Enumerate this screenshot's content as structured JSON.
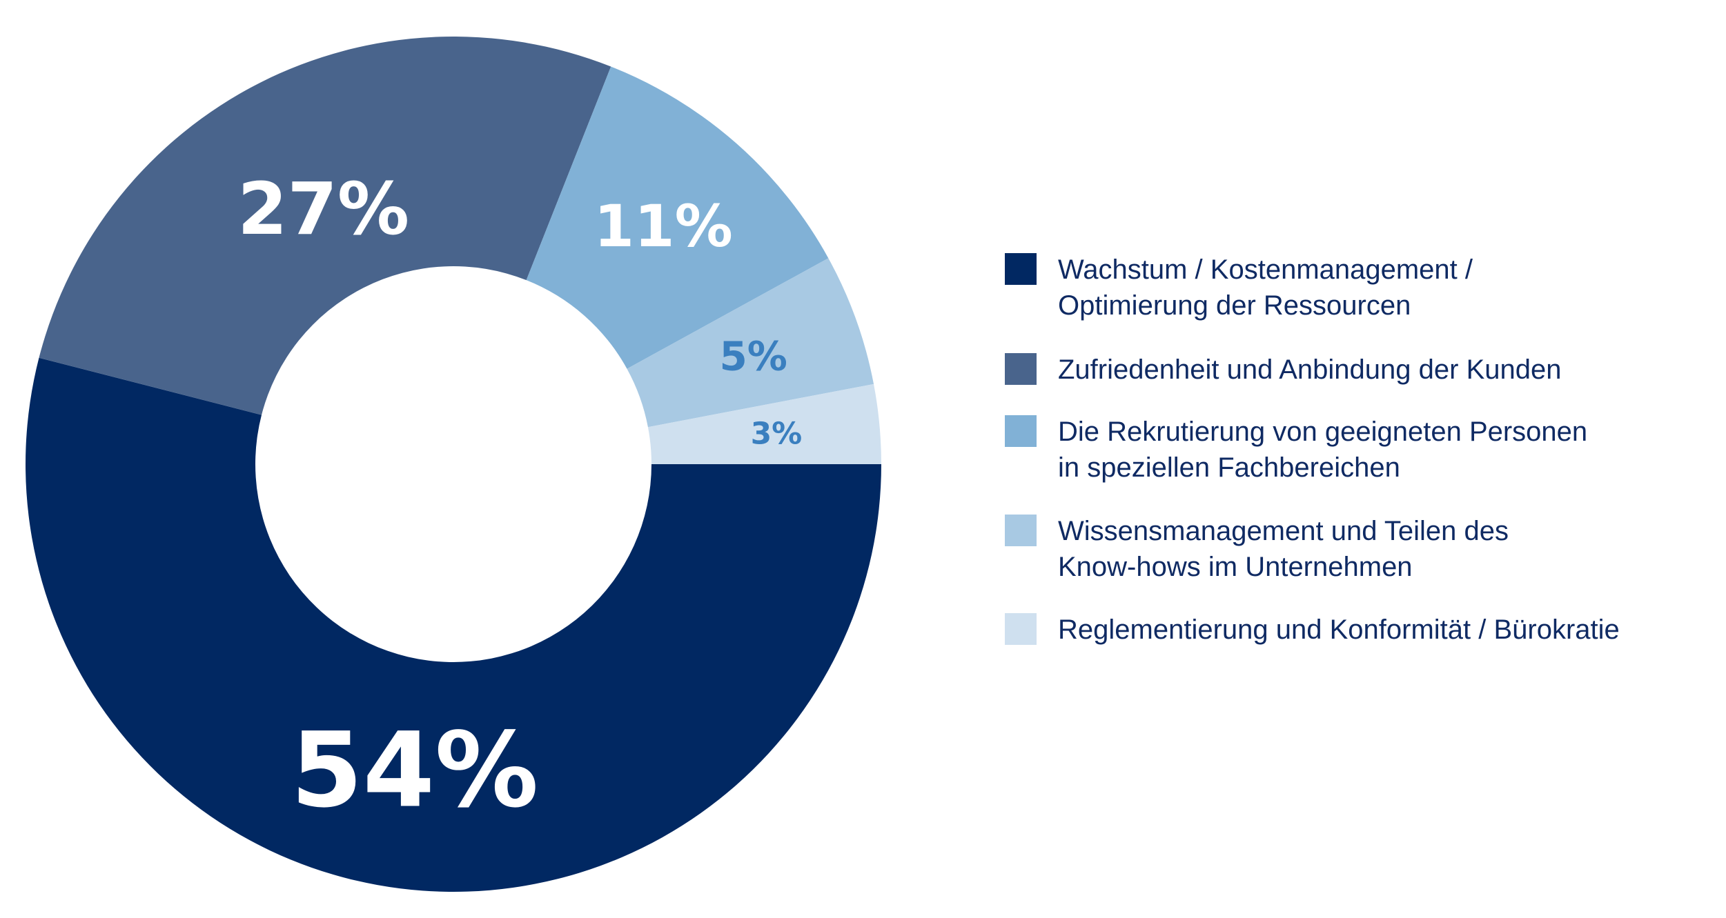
{
  "chart_data": {
    "type": "pie",
    "variant": "donut",
    "title": "",
    "slices": [
      {
        "label": "Wachstum / Kostenmanagement / Optimierung der Ressourcen",
        "legend_lines": [
          "Wachstum / Kostenmanagement /",
          "Optimierung der Ressourcen"
        ],
        "value": 54,
        "value_label": "54%",
        "color": "#012862",
        "label_color": "#ffffff"
      },
      {
        "label": "Zufriedenheit und Anbindung der Kunden",
        "legend_lines": [
          "Zufriedenheit und Anbindung der Kunden"
        ],
        "value": 27,
        "value_label": "27%",
        "color": "#49648c",
        "label_color": "#ffffff"
      },
      {
        "label": "Die Rekrutierung von geeigneten Personen in speziellen Fachbereichen",
        "legend_lines": [
          "Die Rekrutierung von geeigneten Personen",
          "in speziellen Fachbereichen"
        ],
        "value": 11,
        "value_label": "11%",
        "color": "#81b1d6",
        "label_color": "#ffffff"
      },
      {
        "label": "Wissensmanagement und Teilen des Know-hows im Unternehmen",
        "legend_lines": [
          "Wissensmanagement und Teilen des",
          "Know-hows im Unternehmen"
        ],
        "value": 5,
        "value_label": "5%",
        "color": "#a8c9e3",
        "label_color": "#3a7fbf"
      },
      {
        "label": "Reglementierung und Konformität / Bürokratie",
        "legend_lines": [
          "Reglementierung und Konformität / Bürokratie"
        ],
        "value": 3,
        "value_label": "3%",
        "color": "#cfe0ef",
        "label_color": "#3a7fbf"
      }
    ],
    "legend_position": "right"
  }
}
